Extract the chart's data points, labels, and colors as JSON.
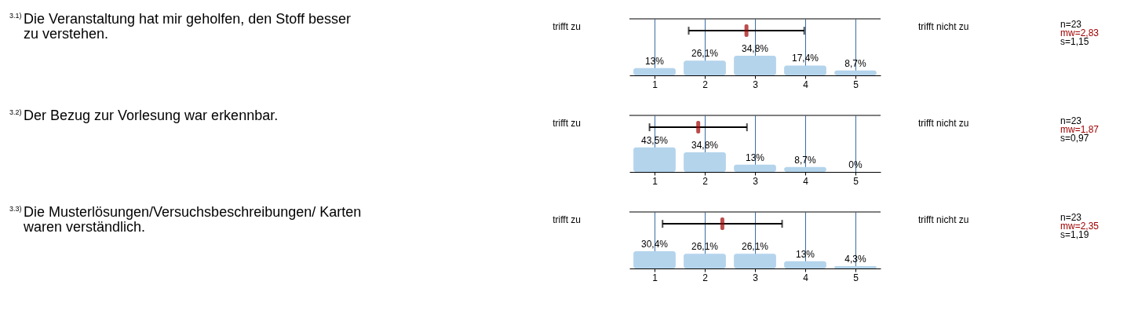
{
  "chart_data": [
    {
      "type": "bar",
      "x": [
        1,
        2,
        3,
        4,
        5
      ],
      "xlim": [
        0.5,
        5.5
      ],
      "xticks": [
        1,
        2,
        3,
        4,
        5
      ],
      "ylim": [
        0,
        100
      ],
      "tick_labels": "x",
      "grid": "x",
      "series": [
        {
          "values": [
            13,
            26.1,
            34.8,
            17.4,
            8.7
          ],
          "value_labels": [
            "13%",
            "26,1%",
            "34,8%",
            "17,4%",
            "8,7%"
          ],
          "color": "#b4d4ec"
        },
        {
          "type": "scatter",
          "x": [
            2.83
          ],
          "values": [
            79
          ],
          "xerrors": [
            1.15
          ],
          "color": "#a00000"
        }
      ],
      "annotations": [
        "3.1)",
        "Die Veranstaltung hat mir geholfen, den Stoff besser zu verstehen.",
        "trifft zu",
        "trifft nicht zu",
        "n=23",
        "mw=2,83",
        "s=1,15"
      ]
    },
    {
      "type": "bar",
      "x": [
        1,
        2,
        3,
        4,
        5
      ],
      "xlim": [
        0.5,
        5.5
      ],
      "xticks": [
        1,
        2,
        3,
        4,
        5
      ],
      "ylim": [
        0,
        100
      ],
      "tick_labels": "x",
      "grid": "x",
      "series": [
        {
          "values": [
            43.5,
            34.8,
            13,
            8.7,
            0
          ],
          "value_labels": [
            "43,5%",
            "34,8%",
            "13%",
            "8,7%",
            "0%"
          ],
          "color": "#b4d4ec"
        },
        {
          "type": "scatter",
          "x": [
            1.87
          ],
          "values": [
            79
          ],
          "xerrors": [
            0.97
          ],
          "color": "#a00000"
        }
      ],
      "annotations": [
        "3.2)",
        "Der Bezug zur Vorlesung war erkennbar.",
        "trifft zu",
        "trifft nicht zu",
        "n=23",
        "mw=1,87",
        "s=0,97"
      ]
    },
    {
      "type": "bar",
      "x": [
        1,
        2,
        3,
        4,
        5
      ],
      "xlim": [
        0.5,
        5.5
      ],
      "xticks": [
        1,
        2,
        3,
        4,
        5
      ],
      "ylim": [
        0,
        100
      ],
      "tick_labels": "x",
      "grid": "x",
      "series": [
        {
          "values": [
            30.4,
            26.1,
            26.1,
            13,
            4.3
          ],
          "value_labels": [
            "30,4%",
            "26,1%",
            "26,1%",
            "13%",
            "4,3%"
          ],
          "color": "#b4d4ec"
        },
        {
          "type": "scatter",
          "x": [
            2.35
          ],
          "values": [
            79
          ],
          "xerrors": [
            1.19
          ],
          "color": "#a00000"
        }
      ],
      "annotations": [
        "3.3)",
        "Die Musterlösungen/Versuchsbeschreibungen/ Karten waren verständlich.",
        "trifft zu",
        "trifft nicht zu",
        "n=23",
        "mw=2,35",
        "s=1,19"
      ]
    }
  ]
}
